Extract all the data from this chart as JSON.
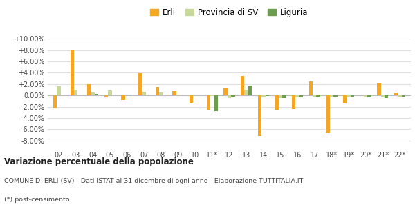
{
  "categories": [
    "02",
    "03",
    "04",
    "05",
    "06",
    "07",
    "08",
    "09",
    "10",
    "11*",
    "12",
    "13",
    "14",
    "15",
    "16",
    "17",
    "18*",
    "19*",
    "20*",
    "21*",
    "22*"
  ],
  "erli": [
    -2.3,
    8.1,
    2.0,
    -0.3,
    -0.8,
    3.9,
    1.5,
    0.8,
    -1.3,
    -2.5,
    1.2,
    3.4,
    -7.2,
    -2.5,
    -2.4,
    2.5,
    -6.7,
    -1.5,
    0.0,
    2.2,
    0.4
  ],
  "provincia": [
    1.6,
    1.0,
    0.5,
    0.9,
    0.1,
    0.6,
    0.5,
    0.2,
    0.0,
    -0.1,
    -0.5,
    1.0,
    -0.3,
    -0.5,
    -0.4,
    -0.3,
    -0.4,
    -0.3,
    -0.4,
    -0.4,
    -0.2
  ],
  "liguria": [
    0.0,
    0.0,
    0.3,
    0.0,
    0.0,
    0.0,
    0.0,
    0.0,
    0.0,
    -2.8,
    -0.2,
    1.7,
    -0.1,
    -0.5,
    -0.4,
    -0.4,
    -0.2,
    -0.3,
    -0.4,
    -0.5,
    -0.2
  ],
  "erli_color": "#f5a623",
  "provincia_color": "#c8d89a",
  "liguria_color": "#6d9e4e",
  "background_color": "#ffffff",
  "grid_color": "#e0e0e0",
  "ytick_vals": [
    -8,
    -6,
    -4,
    -2,
    0,
    2,
    4,
    6,
    8,
    10
  ],
  "ylim_min": -9.5,
  "ylim_max": 11.0,
  "title": "Variazione percentuale della popolazione",
  "subtitle": "COMUNE DI ERLI (SV) - Dati ISTAT al 31 dicembre di ogni anno - Elaborazione TUTTITALIA.IT",
  "footnote": "(*) post-censimento",
  "legend_labels": [
    "Erli",
    "Provincia di SV",
    "Liguria"
  ],
  "bar_width": 0.22
}
